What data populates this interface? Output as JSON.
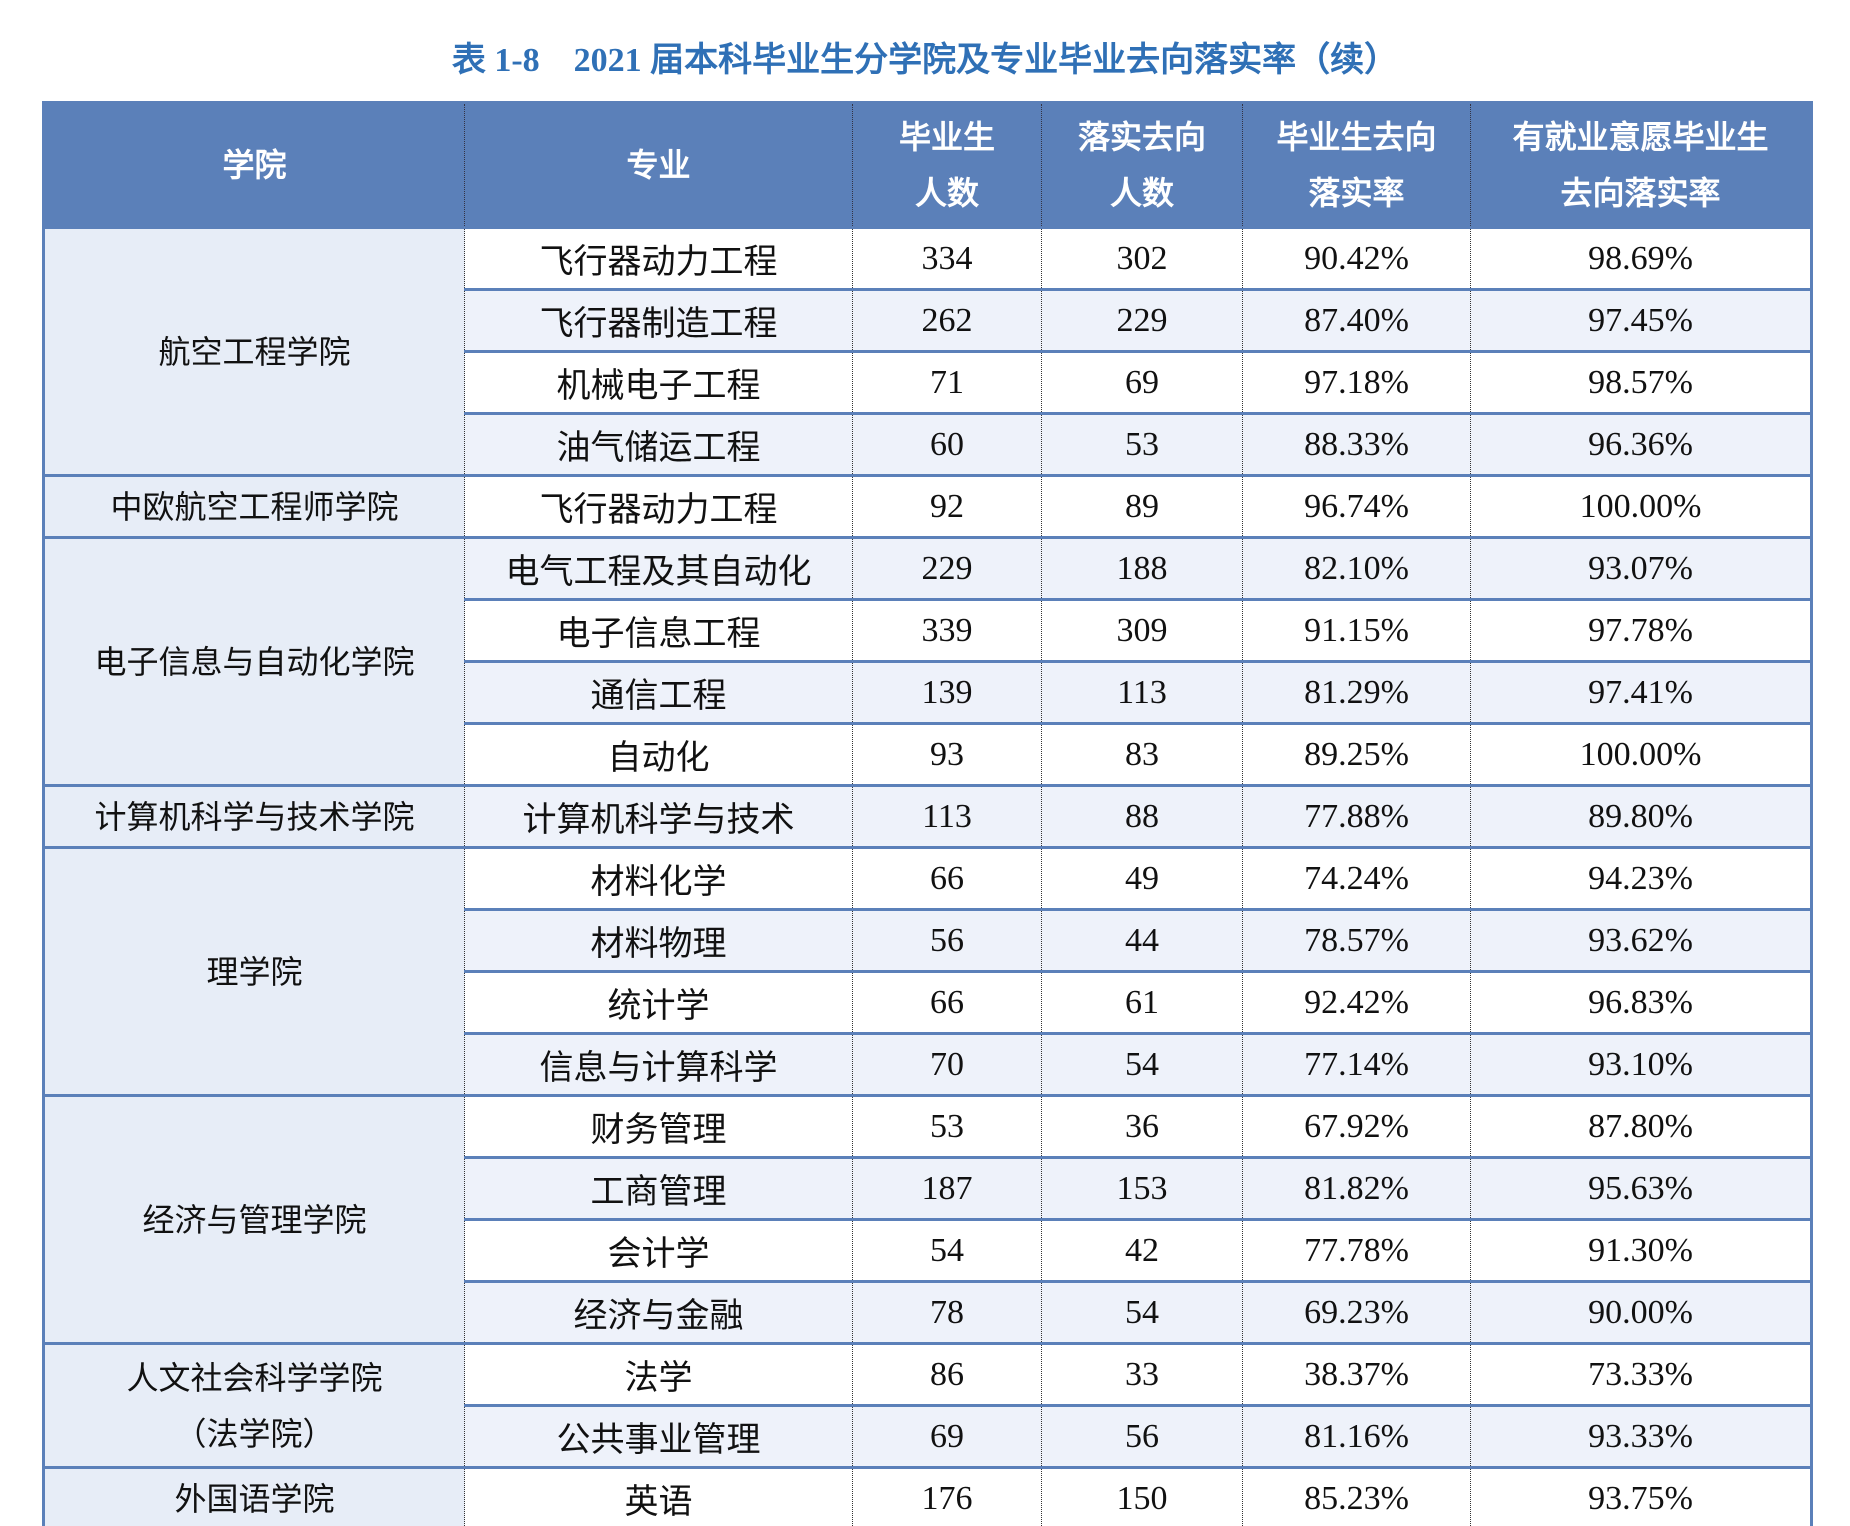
{
  "title": "表 1-8　2021 届本科毕业生分学院及专业毕业去向落实率（续）",
  "table": {
    "columns": [
      [
        "学院"
      ],
      [
        "专业"
      ],
      [
        "毕业生",
        "人数"
      ],
      [
        "落实去向",
        "人数"
      ],
      [
        "毕业生去向",
        "落实率"
      ],
      [
        "有就业意愿毕业生",
        "去向落实率"
      ]
    ],
    "groups": [
      {
        "college": [
          "航空工程学院"
        ],
        "rows": [
          [
            "飞行器动力工程",
            "334",
            "302",
            "90.42%",
            "98.69%"
          ],
          [
            "飞行器制造工程",
            "262",
            "229",
            "87.40%",
            "97.45%"
          ],
          [
            "机械电子工程",
            "71",
            "69",
            "97.18%",
            "98.57%"
          ],
          [
            "油气储运工程",
            "60",
            "53",
            "88.33%",
            "96.36%"
          ]
        ]
      },
      {
        "college": [
          "中欧航空工程师学院"
        ],
        "rows": [
          [
            "飞行器动力工程",
            "92",
            "89",
            "96.74%",
            "100.00%"
          ]
        ]
      },
      {
        "college": [
          "电子信息与自动化学院"
        ],
        "rows": [
          [
            "电气工程及其自动化",
            "229",
            "188",
            "82.10%",
            "93.07%"
          ],
          [
            "电子信息工程",
            "339",
            "309",
            "91.15%",
            "97.78%"
          ],
          [
            "通信工程",
            "139",
            "113",
            "81.29%",
            "97.41%"
          ],
          [
            "自动化",
            "93",
            "83",
            "89.25%",
            "100.00%"
          ]
        ]
      },
      {
        "college": [
          "计算机科学与技术学院"
        ],
        "rows": [
          [
            "计算机科学与技术",
            "113",
            "88",
            "77.88%",
            "89.80%"
          ]
        ]
      },
      {
        "college": [
          "理学院"
        ],
        "rows": [
          [
            "材料化学",
            "66",
            "49",
            "74.24%",
            "94.23%"
          ],
          [
            "材料物理",
            "56",
            "44",
            "78.57%",
            "93.62%"
          ],
          [
            "统计学",
            "66",
            "61",
            "92.42%",
            "96.83%"
          ],
          [
            "信息与计算科学",
            "70",
            "54",
            "77.14%",
            "93.10%"
          ]
        ]
      },
      {
        "college": [
          "经济与管理学院"
        ],
        "rows": [
          [
            "财务管理",
            "53",
            "36",
            "67.92%",
            "87.80%"
          ],
          [
            "工商管理",
            "187",
            "153",
            "81.82%",
            "95.63%"
          ],
          [
            "会计学",
            "54",
            "42",
            "77.78%",
            "91.30%"
          ],
          [
            "经济与金融",
            "78",
            "54",
            "69.23%",
            "90.00%"
          ]
        ]
      },
      {
        "college": [
          "人文社会科学学院",
          "（法学院）"
        ],
        "rows": [
          [
            "法学",
            "86",
            "33",
            "38.37%",
            "73.33%"
          ],
          [
            "公共事业管理",
            "69",
            "56",
            "81.16%",
            "93.33%"
          ]
        ]
      },
      {
        "college": [
          "外国语学院"
        ],
        "rows": [
          [
            "英语",
            "176",
            "150",
            "85.23%",
            "93.75%"
          ]
        ]
      }
    ]
  }
}
